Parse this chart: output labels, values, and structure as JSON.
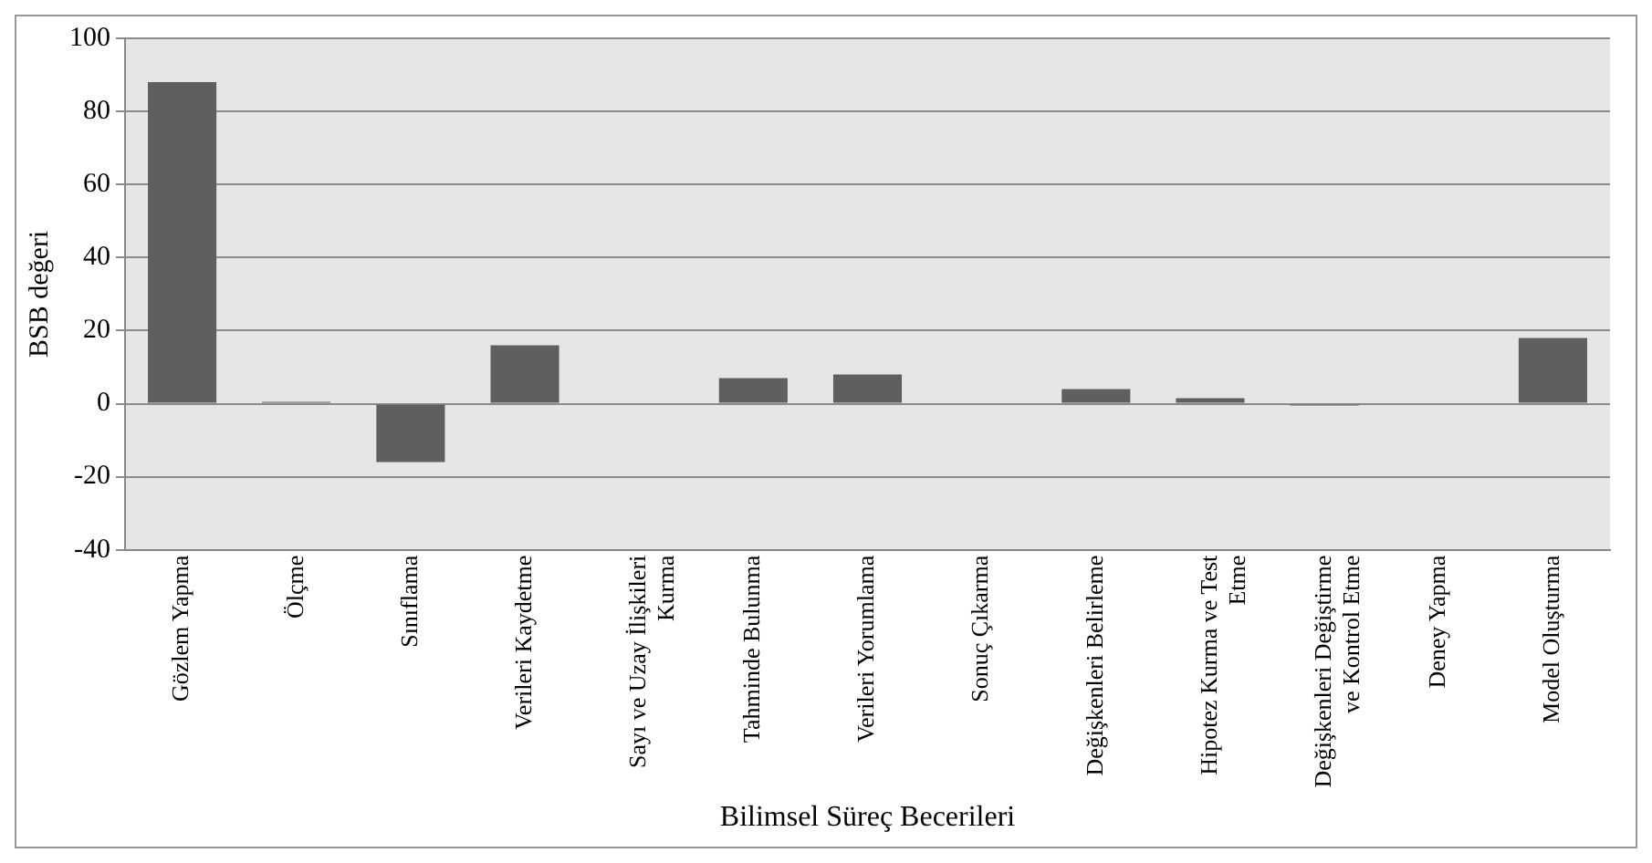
{
  "chart_data": {
    "type": "bar",
    "xlabel": "Bilimsel Süreç Becerileri",
    "ylabel": "BSB değeri",
    "categories": [
      "Gözlem Yapma",
      "Ölçme",
      "Sınıflama",
      "Verileri Kaydetme",
      "Sayı ve Uzay İlişkileri Kurma",
      "Tahminde Bulunma",
      "Verileri Yorumlama",
      "Sonuç Çıkarma",
      "Değişkenleri Belirleme",
      "Hipotez Kurma ve Test Etme",
      "Değişkenleri Değiştirme ve Kontrol Etme",
      "Deney Yapma",
      "Model Oluşturma"
    ],
    "values": [
      88,
      0.5,
      -16,
      16,
      0,
      7,
      8,
      0,
      4,
      1.5,
      -0.5,
      0,
      18
    ],
    "color": "#5f5f5f",
    "ylim": [
      -40,
      100
    ],
    "yticks": [
      -40,
      -20,
      0,
      20,
      40,
      60,
      80,
      100
    ],
    "grid": "y",
    "legend": false
  }
}
